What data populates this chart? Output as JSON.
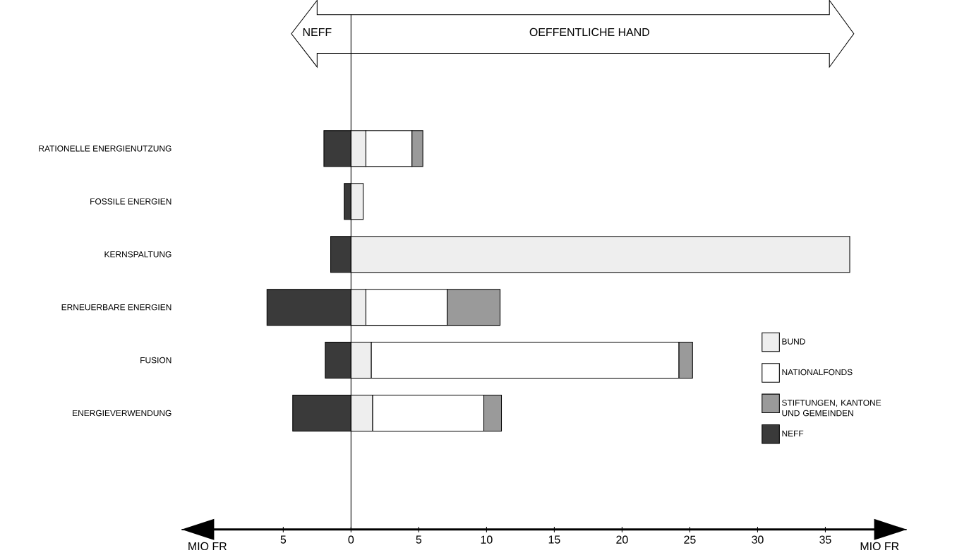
{
  "chart_data": {
    "type": "bar",
    "orientation": "horizontal",
    "stacked": true,
    "categories": [
      "RATIONELLE ENERGIENUTZUNG",
      "FOSSILE ENERGIEN",
      "KERNSPALTUNG",
      "ERNEUERBARE ENERGIEN",
      "FUSION",
      "ENERGIEVERWENDUNG"
    ],
    "series": [
      {
        "name": "BUND",
        "color": "#eeeeee",
        "values": [
          1.1,
          0.9,
          36.8,
          1.1,
          1.5,
          1.6
        ]
      },
      {
        "name": "NATIONALFONDS",
        "color": "#ffffff",
        "values": [
          3.4,
          null,
          null,
          6.0,
          22.7,
          8.2
        ]
      },
      {
        "name": "STIFTUNGEN, KANTONE UND GEMEINDEN",
        "color": "#9a9a9a",
        "values": [
          0.8,
          null,
          null,
          3.9,
          1.0,
          1.3
        ]
      },
      {
        "name": "NEFF",
        "color": "#3a3a3a",
        "values": [
          -2.0,
          -0.5,
          -1.5,
          -6.2,
          -1.9,
          -4.3
        ]
      }
    ],
    "xlim": [
      -12.5,
      41
    ],
    "xticks": [
      {
        "value": -5,
        "label": "5"
      },
      0,
      5,
      10,
      15,
      20,
      25,
      30,
      35
    ],
    "xlabel": "MIO FR",
    "ref_lines": [
      {
        "axis": "x",
        "value": 0
      }
    ],
    "annotations": [
      "NEFF",
      "OEFFENTLICHE HAND",
      "MIO FR"
    ],
    "legend": "bottom right"
  }
}
